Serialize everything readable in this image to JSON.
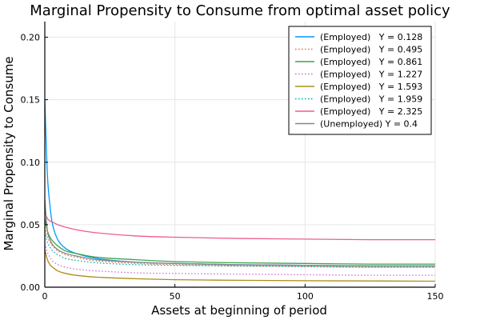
{
  "chart_data": {
    "type": "line",
    "title": "Marginal Propensity to Consume from optimal asset policy",
    "xlabel": "Assets at beginning of period",
    "ylabel": "Marginal Propensity to Consume",
    "xlim": [
      0,
      150
    ],
    "ylim": [
      0,
      0.2125
    ],
    "xticks": [
      0,
      50,
      100,
      150
    ],
    "xtick_labels": [
      "0",
      "50",
      "100",
      "150"
    ],
    "yticks": [
      0,
      0.05,
      0.1,
      0.15,
      0.2
    ],
    "ytick_labels": [
      "0.00",
      "0.05",
      "0.10",
      "0.15",
      "0.20"
    ],
    "grid": true,
    "legend_position": "top-right",
    "x": [
      0,
      1,
      2,
      3,
      5,
      8,
      12,
      20,
      35,
      50,
      75,
      100,
      125,
      150
    ],
    "series": [
      {
        "name": "(Employed)   Y = 0.128",
        "color": "#009af9",
        "dash": "solid",
        "values": [
          0.15,
          0.09,
          0.065,
          0.05,
          0.038,
          0.031,
          0.027,
          0.023,
          0.02,
          0.019,
          0.018,
          0.0175,
          0.017,
          0.017
        ]
      },
      {
        "name": "(Employed)   Y = 0.495",
        "color": "#e26f46",
        "dash": "dotted",
        "values": [
          0.048,
          0.04,
          0.036,
          0.033,
          0.029,
          0.026,
          0.024,
          0.021,
          0.019,
          0.018,
          0.017,
          0.0165,
          0.016,
          0.016
        ]
      },
      {
        "name": "(Employed)   Y = 0.861",
        "color": "#3da44d",
        "dash": "solid",
        "values": [
          0.055,
          0.045,
          0.04,
          0.037,
          0.033,
          0.029,
          0.027,
          0.024,
          0.022,
          0.0205,
          0.0195,
          0.019,
          0.0185,
          0.0185
        ]
      },
      {
        "name": "(Employed)   Y = 1.227",
        "color": "#c271d2",
        "dash": "dotted",
        "values": [
          0.035,
          0.028,
          0.024,
          0.021,
          0.018,
          0.016,
          0.0145,
          0.013,
          0.0115,
          0.011,
          0.0105,
          0.01,
          0.0095,
          0.0095
        ]
      },
      {
        "name": "(Employed)   Y = 1.593",
        "color": "#ac8d18",
        "dash": "solid",
        "values": [
          0.03,
          0.022,
          0.018,
          0.016,
          0.013,
          0.011,
          0.0095,
          0.008,
          0.0068,
          0.006,
          0.0055,
          0.0052,
          0.005,
          0.0048
        ]
      },
      {
        "name": "(Employed)   Y = 1.959",
        "color": "#00a9ad",
        "dash": "dotted",
        "values": [
          0.044,
          0.036,
          0.032,
          0.029,
          0.026,
          0.023,
          0.0215,
          0.0195,
          0.018,
          0.0175,
          0.017,
          0.0165,
          0.016,
          0.016
        ]
      },
      {
        "name": "(Employed)   Y = 2.325",
        "color": "#ed5d92",
        "dash": "solid",
        "values": [
          0.06,
          0.055,
          0.053,
          0.052,
          0.05,
          0.048,
          0.046,
          0.0435,
          0.041,
          0.04,
          0.039,
          0.0385,
          0.038,
          0.038
        ]
      },
      {
        "name": "(Unemployed) Y = 0.4",
        "color": "#868686",
        "dash": "solid",
        "values": [
          0.07,
          0.045,
          0.038,
          0.034,
          0.03,
          0.027,
          0.025,
          0.022,
          0.02,
          0.019,
          0.018,
          0.0175,
          0.017,
          0.017
        ]
      }
    ]
  }
}
